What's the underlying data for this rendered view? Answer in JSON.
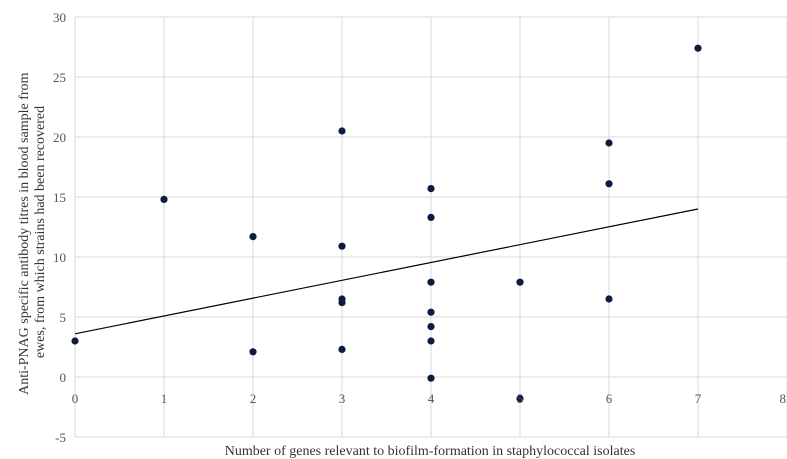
{
  "chart_data": {
    "type": "scatter",
    "title": "",
    "xlabel": "Number of genes relevant to biofilm-formation in staphylococcal isolates",
    "ylabel_line1": "Anti-PNAG specific antibody titres in blood sample from",
    "ylabel_line2": "ewes, from which strains had been recovered",
    "xlim": [
      0,
      8
    ],
    "ylim": [
      -5,
      30
    ],
    "x_ticks": [
      "0",
      "1",
      "2",
      "3",
      "4",
      "5",
      "6",
      "7",
      "8"
    ],
    "y_ticks": [
      "-5",
      "0",
      "5",
      "10",
      "15",
      "20",
      "25",
      "30"
    ],
    "grid": true,
    "legend": "none",
    "marker_color": "#0d1b3e",
    "trendline": {
      "type": "linear",
      "x": [
        0,
        7
      ],
      "y": [
        3.6,
        14.0
      ]
    },
    "series": [
      {
        "points": [
          {
            "x": 0,
            "y": 3.0
          },
          {
            "x": 1,
            "y": 14.8
          },
          {
            "x": 2,
            "y": 11.7
          },
          {
            "x": 2,
            "y": 2.1
          },
          {
            "x": 3,
            "y": 20.5
          },
          {
            "x": 3,
            "y": 10.9
          },
          {
            "x": 3,
            "y": 6.5
          },
          {
            "x": 3,
            "y": 6.2
          },
          {
            "x": 3,
            "y": 2.3
          },
          {
            "x": 4,
            "y": 15.7
          },
          {
            "x": 4,
            "y": 13.3
          },
          {
            "x": 4,
            "y": 7.9
          },
          {
            "x": 4,
            "y": 5.4
          },
          {
            "x": 4,
            "y": 4.2
          },
          {
            "x": 4,
            "y": 3.0
          },
          {
            "x": 4,
            "y": -0.1
          },
          {
            "x": 5,
            "y": 7.9
          },
          {
            "x": 5,
            "y": -1.8
          },
          {
            "x": 6,
            "y": 19.5
          },
          {
            "x": 6,
            "y": 16.1
          },
          {
            "x": 6,
            "y": 6.5
          },
          {
            "x": 7,
            "y": 27.4
          }
        ]
      }
    ]
  }
}
